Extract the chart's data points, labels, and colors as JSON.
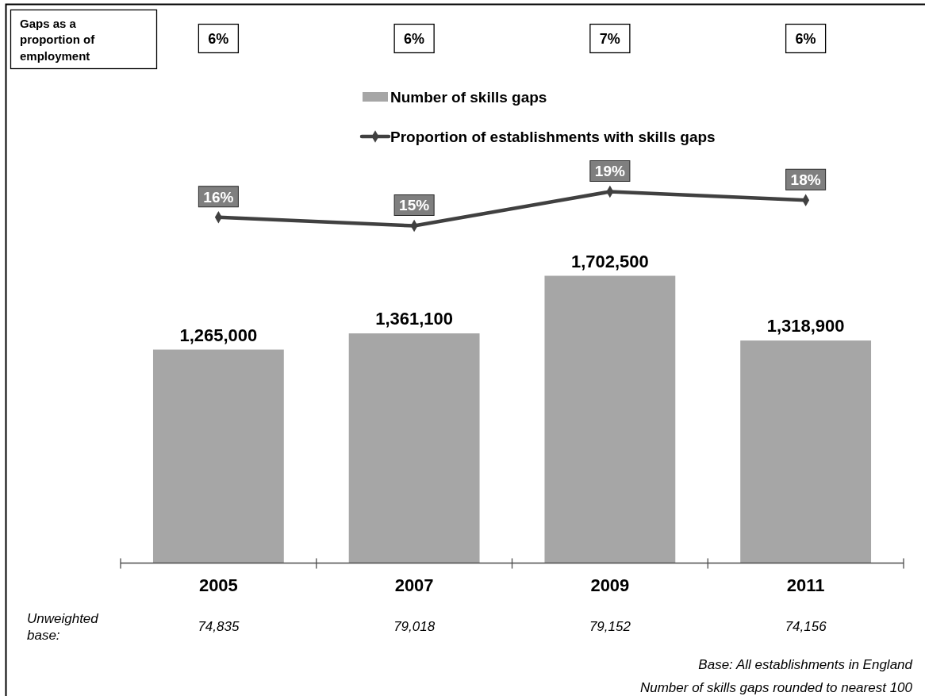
{
  "chart_data": [
    {
      "type": "bar",
      "categories": [
        "2005",
        "2007",
        "2009",
        "2011"
      ],
      "series": [
        {
          "name": "Number of skills gaps",
          "color": "#a6a6a6",
          "values": [
            1265000,
            1361100,
            1702500,
            1318900
          ],
          "value_labels": [
            "1,265,000",
            "1,361,100",
            "1,702,500",
            "1,318,900"
          ]
        }
      ],
      "legend": "top",
      "annotations": [
        "Gaps as a proportion of employment",
        "6%",
        "6%",
        "7%",
        "6%",
        "Unweighted base:",
        "74,835",
        "79,018",
        "79,152",
        "74,156",
        "Base: All establishments in England",
        "Number of skills gaps rounded to nearest 100"
      ]
    },
    {
      "type": "line",
      "categories": [
        null,
        null,
        null,
        null
      ],
      "marker": "diamond",
      "legend": "top",
      "series": [
        {
          "name": "Proportion of establishments with skills gaps",
          "color": "#404040",
          "values": [
            16,
            15,
            19,
            18
          ],
          "value_labels": [
            "16%",
            "15%",
            "19%",
            "18%"
          ]
        }
      ]
    }
  ]
}
